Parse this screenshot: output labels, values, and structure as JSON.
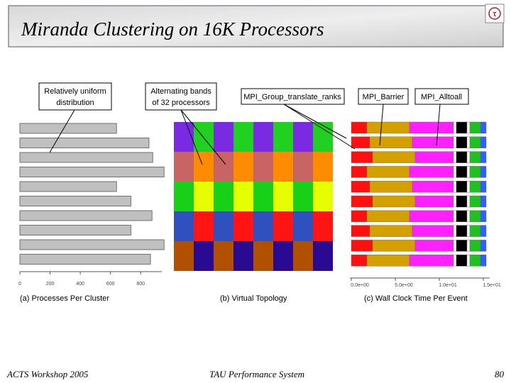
{
  "header": {
    "title": "Miranda Clustering on 16K Processors"
  },
  "figure": {
    "callouts": {
      "uniform": [
        "Relatively uniform",
        "distribution"
      ],
      "bands": [
        "Alternating bands",
        "of 32 processors"
      ],
      "translate": "MPI_Group_translate_ranks",
      "barrier": "MPI_Barrier",
      "alltoall": "MPI_Alltoall"
    },
    "panel_a": {
      "caption": "(a) Processes Per Cluster",
      "values": [
        640,
        855,
        880,
        955,
        640,
        735,
        875,
        735,
        955,
        865
      ],
      "xlim": [
        0,
        940
      ],
      "xticks": [
        0,
        200,
        400,
        600,
        800
      ]
    },
    "panel_b": {
      "caption": "(b) Virtual Topology"
    },
    "panel_c": {
      "caption": "(c) Wall Clock Time Per Event",
      "xticks": [
        "0.0e+00",
        "5.0e+00",
        "1.0e+01",
        "1.5e+01"
      ]
    }
  },
  "footer": {
    "left": "ACTS Workshop 2005",
    "center": "TAU Performance System",
    "page": "80"
  }
}
